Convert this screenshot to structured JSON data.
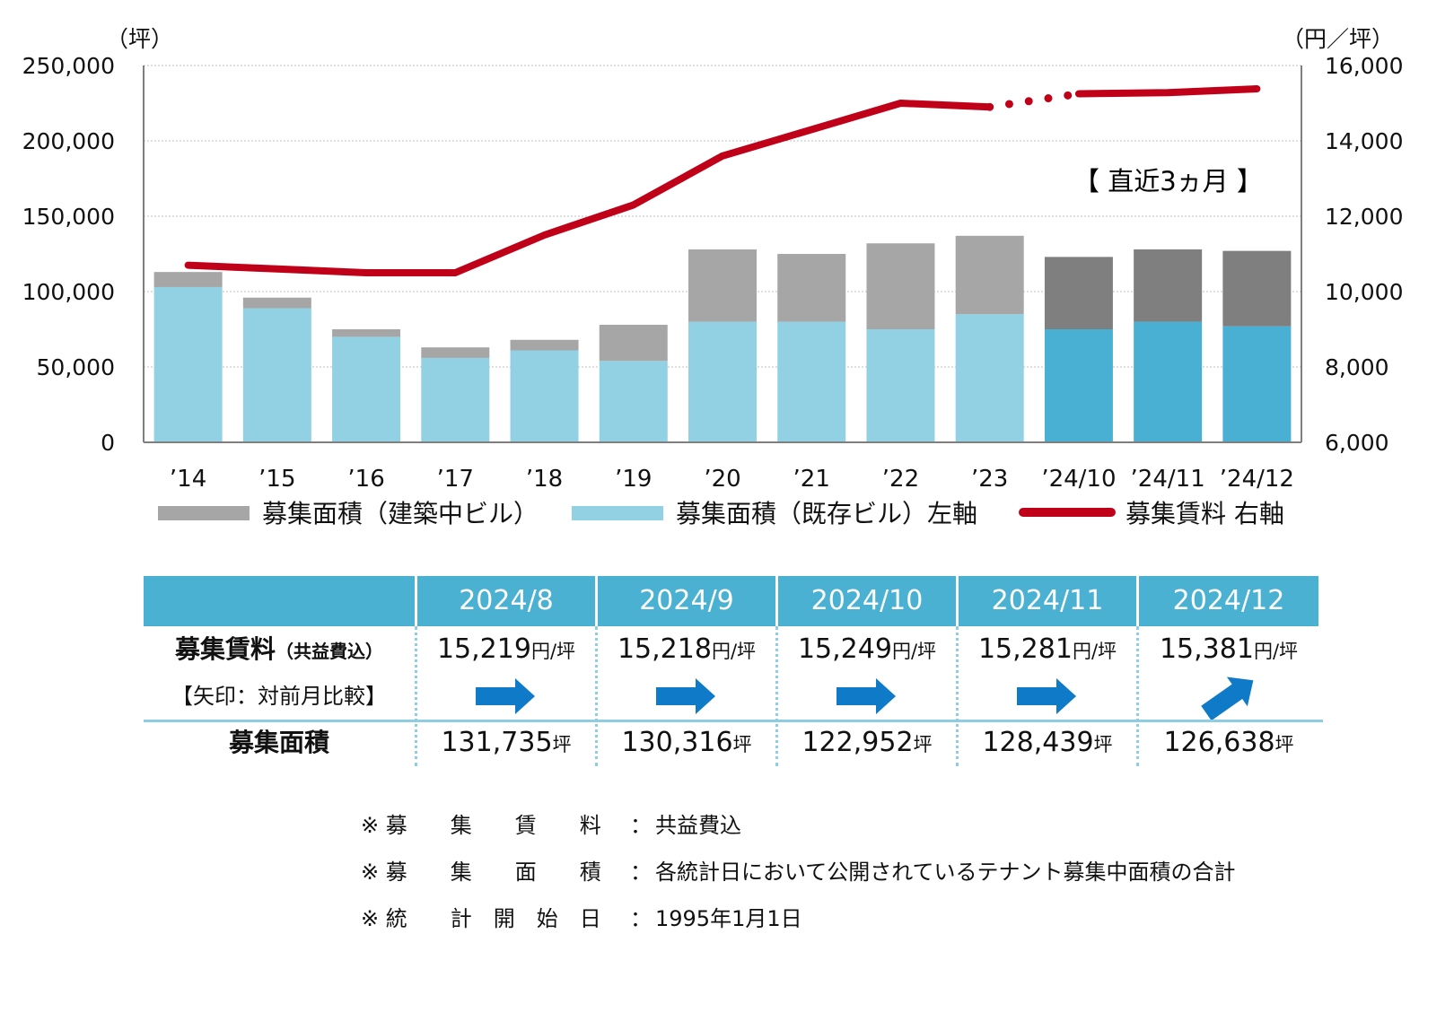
{
  "chart_data": {
    "type": "bar",
    "left_axis_unit": "（坪）",
    "right_axis_unit": "（円／坪）",
    "categories": [
      "’14",
      "’15",
      "’16",
      "’17",
      "’18",
      "’19",
      "’20",
      "’21",
      "’22",
      "’23",
      "’24/10",
      "’24/11",
      "’24/12"
    ],
    "series": [
      {
        "name": "募集面積（既存ビル）左軸",
        "type": "bar",
        "axis": "left",
        "values": [
          103000,
          89000,
          70000,
          56000,
          61000,
          54000,
          80000,
          80000,
          75000,
          85000,
          75000,
          80000,
          77000
        ]
      },
      {
        "name": "募集面積（建築中ビル）",
        "type": "bar",
        "axis": "left",
        "values": [
          10000,
          7000,
          5000,
          7000,
          7000,
          24000,
          48000,
          45000,
          57000,
          52000,
          48000,
          48000,
          50000
        ]
      },
      {
        "name": "募集賃料 右軸",
        "type": "line",
        "axis": "right",
        "values": [
          10700,
          10600,
          10500,
          10500,
          11500,
          12300,
          13600,
          14300,
          15000,
          14900,
          15249,
          15281,
          15381
        ]
      }
    ],
    "left_ylim": [
      0,
      250000
    ],
    "right_ylim": [
      6000,
      16000
    ],
    "left_ticks": [
      "250,000",
      "200,000",
      "150,000",
      "100,000",
      "50,000",
      "0"
    ],
    "right_ticks": [
      "16,000",
      "14,000",
      "12,000",
      "10,000",
      "8,000",
      "6,000"
    ],
    "annotation": "【 直近3ヵ月 】",
    "grid": true,
    "legend_position": "bottom",
    "colors": {
      "existing": "#92d0e4",
      "existing_recent": "#49b0d3",
      "construction": "#a6a6a6",
      "construction_recent": "#7f7f7f",
      "rent_line": "#c00018",
      "arrow": "#0f7ac8",
      "table_header": "#4bb1d3"
    }
  },
  "table": {
    "columns": [
      "2024/8",
      "2024/9",
      "2024/10",
      "2024/11",
      "2024/12"
    ],
    "rent_label": "募集賃料",
    "rent_label_sub": "（共益費込）",
    "arrow_label": "【矢印：対前月比較】",
    "rent_values": [
      "15,219",
      "15,218",
      "15,249",
      "15,281",
      "15,381"
    ],
    "rent_unit": "円/坪",
    "arrows": [
      "flat",
      "flat",
      "flat",
      "flat",
      "up"
    ],
    "area_label": "募集面積",
    "area_values": [
      "131,735",
      "130,316",
      "122,952",
      "128,439",
      "126,638"
    ],
    "area_unit": "坪"
  },
  "notes": [
    {
      "label": "※ 募　　集　　賃　　料",
      "sep": "：",
      "text": "共益費込"
    },
    {
      "label": "※ 募　　集　　面　　積",
      "sep": "：",
      "text": "各統計日において公開されているテナント募集中面積の合計"
    },
    {
      "label": "※ 統　　計　開　始　日",
      "sep": "：",
      "text": "1995年1月1日"
    }
  ]
}
